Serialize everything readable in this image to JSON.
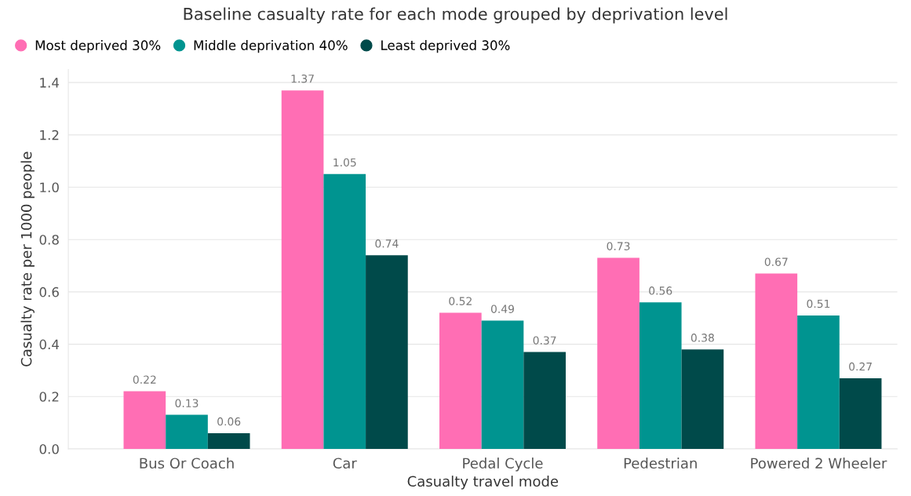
{
  "chart_data": {
    "type": "bar",
    "title": "Baseline casualty rate for each mode grouped by deprivation level",
    "xlabel": "Casualty travel mode",
    "ylabel": "Casualty rate per 1000 people",
    "categories": [
      "Bus Or Coach",
      "Car",
      "Pedal Cycle",
      "Pedestrian",
      "Powered 2 Wheeler"
    ],
    "series": [
      {
        "name": "Most deprived 30%",
        "color": "#ff6eb4",
        "values": [
          0.22,
          1.37,
          0.52,
          0.73,
          0.67
        ]
      },
      {
        "name": "Middle deprivation 40%",
        "color": "#009490",
        "values": [
          0.13,
          1.05,
          0.49,
          0.56,
          0.51
        ]
      },
      {
        "name": "Least deprived 30%",
        "color": "#004a4a",
        "values": [
          0.06,
          0.74,
          0.37,
          0.38,
          0.27
        ]
      }
    ],
    "ylim": [
      0,
      1.45
    ],
    "yticks": [
      {
        "value": 0,
        "label": "0.0"
      },
      {
        "value": 0.2,
        "label": "0.2"
      },
      {
        "value": 0.4,
        "label": "0.4"
      },
      {
        "value": 0.6,
        "label": "0.6"
      },
      {
        "value": 0.8,
        "label": "0.8"
      },
      {
        "value": 1.0,
        "label": "1.0"
      },
      {
        "value": 1.2,
        "label": "1.2"
      },
      {
        "value": 1.4,
        "label": "1.4"
      }
    ],
    "grid": "y",
    "legend": "top left",
    "data_labels": true
  }
}
